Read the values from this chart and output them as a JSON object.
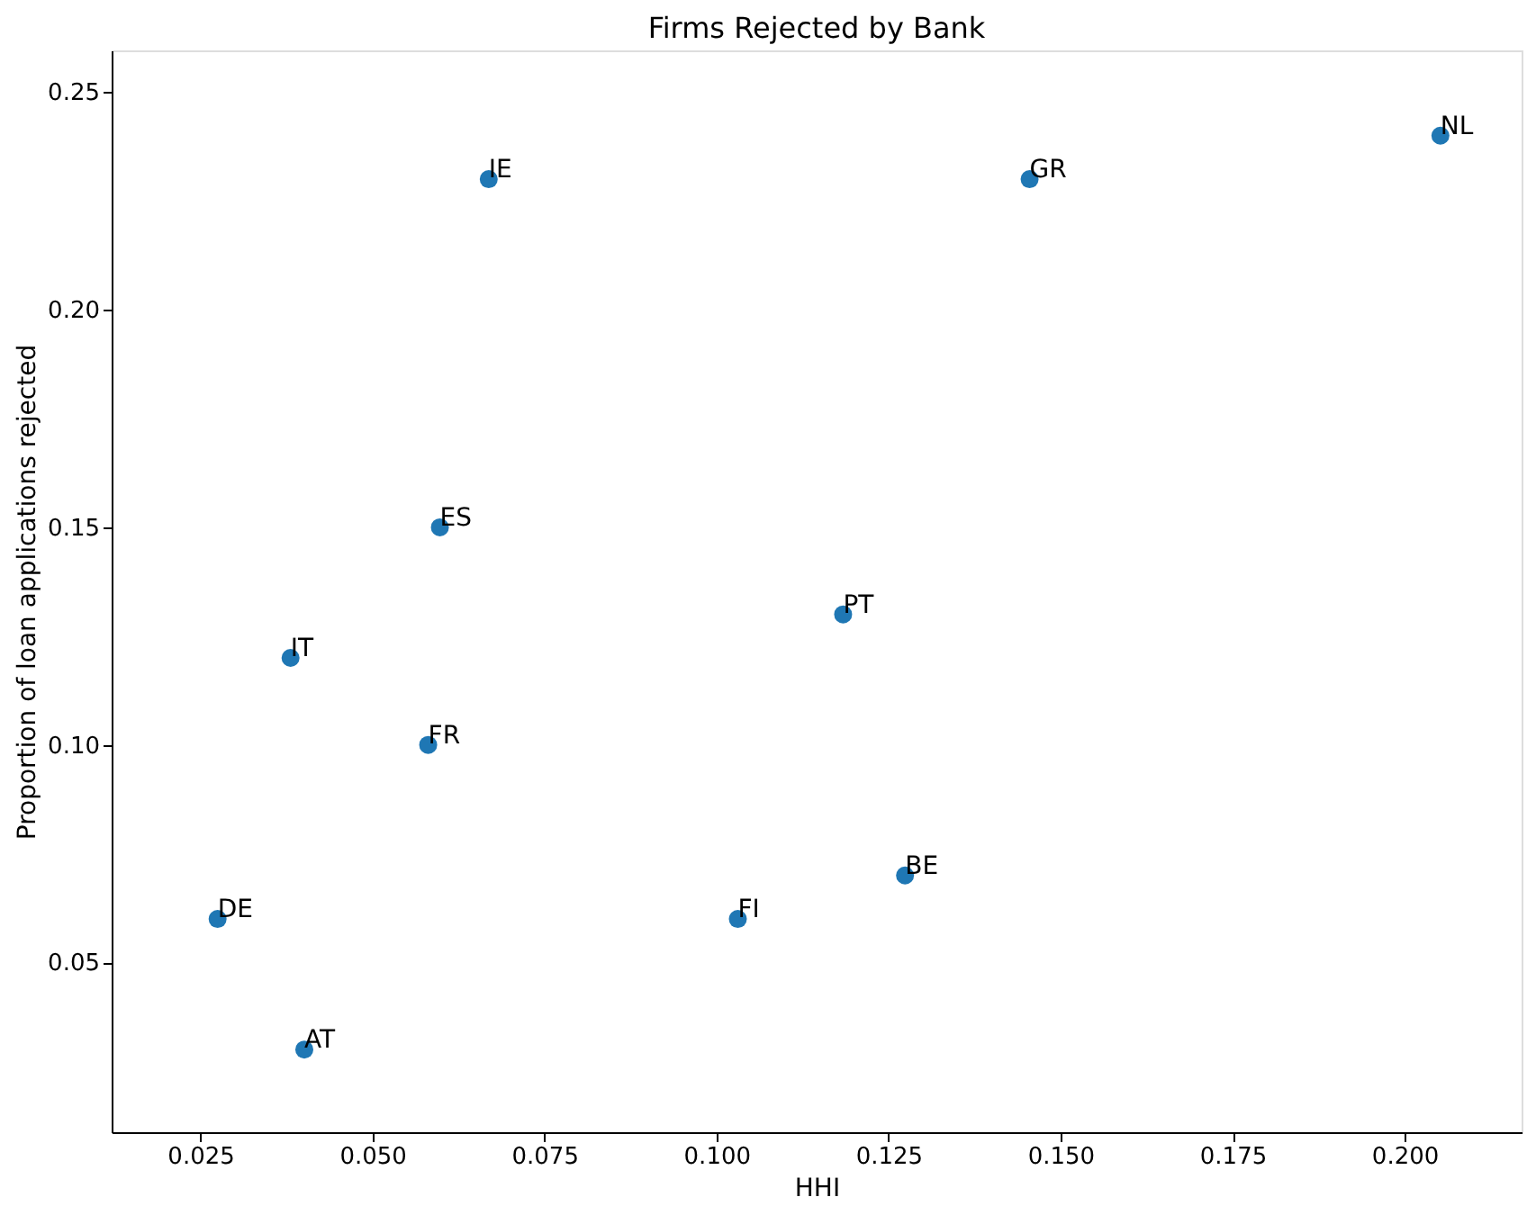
{
  "chart_data": {
    "type": "scatter",
    "title": "Firms Rejected by Bank",
    "xlabel": "HHI",
    "ylabel": "Proportion of loan applications rejected",
    "x": [
      0.0669,
      0.1455,
      0.2052,
      0.0598,
      0.1184,
      0.0381,
      0.0581,
      0.0275,
      0.1031,
      0.1274,
      0.0401
    ],
    "series": [
      {
        "color": "#1f77b4",
        "values": [
          0.23,
          0.23,
          0.24,
          0.15,
          0.13,
          0.12,
          0.1,
          0.06,
          0.06,
          0.07,
          0.03
        ]
      }
    ],
    "annotations": [
      {
        "text": "IE",
        "x": 0.0669,
        "y": 0.23
      },
      {
        "text": "GR",
        "x": 0.1455,
        "y": 0.23
      },
      {
        "text": "NL",
        "x": 0.2052,
        "y": 0.24
      },
      {
        "text": "ES",
        "x": 0.0598,
        "y": 0.15
      },
      {
        "text": "PT",
        "x": 0.1184,
        "y": 0.13
      },
      {
        "text": "IT",
        "x": 0.0381,
        "y": 0.12
      },
      {
        "text": "FR",
        "x": 0.0581,
        "y": 0.1
      },
      {
        "text": "DE",
        "x": 0.0275,
        "y": 0.06
      },
      {
        "text": "FI",
        "x": 0.1031,
        "y": 0.06
      },
      {
        "text": "BE",
        "x": 0.1274,
        "y": 0.07
      },
      {
        "text": "AT",
        "x": 0.0401,
        "y": 0.03
      }
    ],
    "xlim": [
      0.0121,
      0.217
    ],
    "ylim": [
      0.011,
      0.2596
    ],
    "xticks": [
      {
        "value": 0.025,
        "label": "0.025"
      },
      {
        "value": 0.05,
        "label": "0.050"
      },
      {
        "value": 0.075,
        "label": "0.075"
      },
      {
        "value": 0.1,
        "label": "0.100"
      },
      {
        "value": 0.125,
        "label": "0.125"
      },
      {
        "value": 0.15,
        "label": "0.150"
      },
      {
        "value": 0.175,
        "label": "0.175"
      },
      {
        "value": 0.2,
        "label": "0.200"
      }
    ],
    "yticks": [
      {
        "value": 0.05,
        "label": "0.05"
      },
      {
        "value": 0.1,
        "label": "0.10"
      },
      {
        "value": 0.15,
        "label": "0.15"
      },
      {
        "value": 0.2,
        "label": "0.20"
      },
      {
        "value": 0.25,
        "label": "0.25"
      }
    ],
    "marker": "circle",
    "grid": false
  }
}
